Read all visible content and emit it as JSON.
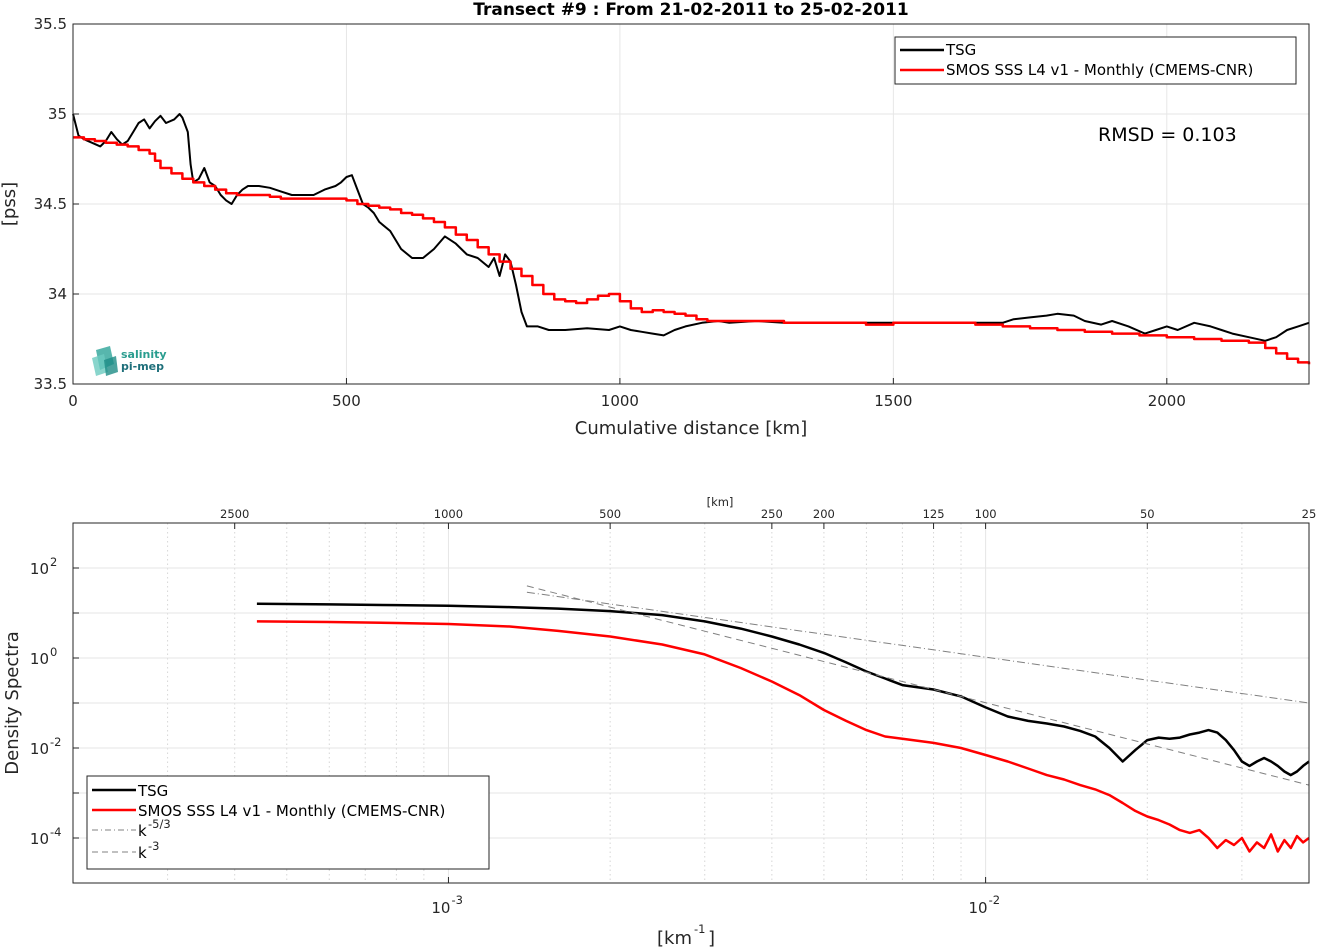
{
  "chart_data": [
    {
      "type": "line",
      "title": "Transect #9 : From 21-02-2011 to 25-02-2011",
      "xlabel": "Cumulative distance [km]",
      "ylabel": "[pss]",
      "xlim": [
        0,
        2260
      ],
      "ylim": [
        33.5,
        35.5
      ],
      "xticks": [
        "0",
        "500",
        "1000",
        "1500",
        "2000"
      ],
      "yticks": [
        "33.5",
        "34",
        "34.5",
        "35",
        "35.5"
      ],
      "grid": true,
      "legend": "top-right",
      "annotation": "RMSD = 0.103",
      "logo": [
        "salinity",
        "pi-mep"
      ],
      "series": [
        {
          "name": "TSG",
          "color": "#000000",
          "x": [
            0,
            10,
            20,
            35,
            50,
            60,
            70,
            80,
            90,
            100,
            110,
            120,
            130,
            140,
            150,
            160,
            170,
            185,
            195,
            200,
            210,
            215,
            220,
            230,
            240,
            250,
            260,
            270,
            280,
            290,
            300,
            310,
            320,
            340,
            360,
            380,
            400,
            420,
            440,
            460,
            480,
            490,
            500,
            510,
            520,
            530,
            540,
            550,
            560,
            580,
            600,
            620,
            640,
            660,
            680,
            700,
            720,
            740,
            760,
            770,
            780,
            790,
            800,
            810,
            820,
            830,
            850,
            870,
            900,
            940,
            980,
            1000,
            1020,
            1040,
            1060,
            1080,
            1100,
            1120,
            1150,
            1180,
            1200,
            1250,
            1300,
            1350,
            1400,
            1450,
            1500,
            1550,
            1600,
            1650,
            1700,
            1720,
            1750,
            1780,
            1800,
            1830,
            1850,
            1880,
            1900,
            1930,
            1960,
            1980,
            2000,
            2020,
            2050,
            2080,
            2100,
            2120,
            2150,
            2180,
            2200,
            2220,
            2240,
            2260
          ],
          "y": [
            35.0,
            34.88,
            34.86,
            34.84,
            34.82,
            34.85,
            34.9,
            34.86,
            34.83,
            34.85,
            34.9,
            34.95,
            34.97,
            34.92,
            34.96,
            34.99,
            34.95,
            34.97,
            35.0,
            34.98,
            34.9,
            34.72,
            34.62,
            34.64,
            34.7,
            34.62,
            34.6,
            34.55,
            34.52,
            34.5,
            34.55,
            34.58,
            34.6,
            34.6,
            34.59,
            34.57,
            34.55,
            34.55,
            34.55,
            34.58,
            34.6,
            34.62,
            34.65,
            34.66,
            34.58,
            34.5,
            34.48,
            34.45,
            34.4,
            34.35,
            34.25,
            34.2,
            34.2,
            34.25,
            34.32,
            34.28,
            34.22,
            34.2,
            34.15,
            34.2,
            34.1,
            34.22,
            34.18,
            34.05,
            33.9,
            33.82,
            33.82,
            33.8,
            33.8,
            33.81,
            33.8,
            33.82,
            33.8,
            33.79,
            33.78,
            33.77,
            33.8,
            33.82,
            33.84,
            33.85,
            33.84,
            33.85,
            33.84,
            33.84,
            33.84,
            33.84,
            33.84,
            33.84,
            33.84,
            33.84,
            33.84,
            33.86,
            33.87,
            33.88,
            33.89,
            33.88,
            33.85,
            33.83,
            33.85,
            33.82,
            33.78,
            33.8,
            33.82,
            33.8,
            33.84,
            33.82,
            33.8,
            33.78,
            33.76,
            33.74,
            33.76,
            33.8,
            33.82,
            33.84
          ]
        },
        {
          "name": "SMOS SSS L4 v1 - Monthly (CMEMS-CNR)",
          "color": "#ff0000",
          "x": [
            0,
            20,
            40,
            60,
            80,
            100,
            120,
            140,
            150,
            160,
            180,
            200,
            220,
            240,
            260,
            280,
            300,
            320,
            340,
            360,
            380,
            400,
            420,
            440,
            460,
            480,
            500,
            520,
            540,
            560,
            580,
            600,
            620,
            640,
            660,
            680,
            700,
            720,
            740,
            760,
            780,
            800,
            820,
            840,
            860,
            880,
            900,
            920,
            940,
            960,
            980,
            1000,
            1020,
            1040,
            1060,
            1080,
            1100,
            1120,
            1140,
            1160,
            1180,
            1200,
            1250,
            1300,
            1350,
            1400,
            1450,
            1500,
            1550,
            1600,
            1650,
            1700,
            1750,
            1800,
            1850,
            1900,
            1950,
            2000,
            2050,
            2100,
            2150,
            2180,
            2200,
            2220,
            2240,
            2260
          ],
          "y": [
            34.87,
            34.86,
            34.85,
            34.84,
            34.83,
            34.82,
            34.8,
            34.78,
            34.74,
            34.7,
            34.67,
            34.64,
            34.62,
            34.6,
            34.58,
            34.56,
            34.55,
            34.55,
            34.55,
            34.54,
            34.53,
            34.53,
            34.53,
            34.53,
            34.53,
            34.53,
            34.52,
            34.5,
            34.49,
            34.48,
            34.47,
            34.45,
            34.44,
            34.42,
            34.4,
            34.37,
            34.33,
            34.3,
            34.26,
            34.22,
            34.18,
            34.14,
            34.1,
            34.05,
            34.0,
            33.97,
            33.96,
            33.95,
            33.97,
            33.99,
            34.0,
            33.96,
            33.92,
            33.9,
            33.91,
            33.9,
            33.89,
            33.88,
            33.86,
            33.85,
            33.85,
            33.85,
            33.85,
            33.84,
            33.84,
            33.84,
            33.83,
            33.84,
            33.84,
            33.84,
            33.83,
            33.82,
            33.81,
            33.8,
            33.79,
            33.78,
            33.77,
            33.76,
            33.75,
            33.74,
            33.73,
            33.7,
            33.67,
            33.64,
            33.62,
            33.61
          ]
        }
      ]
    },
    {
      "type": "line",
      "xlabel": "[km-1]",
      "ylabel": "Density Spectra",
      "xscale": "log",
      "yscale": "log",
      "xlim": [
        0.0002,
        0.04
      ],
      "ylim": [
        1e-05,
        1000
      ],
      "xticks": [
        "10-3",
        "10-2"
      ],
      "yticks": [
        "10-4",
        "10-2",
        "100",
        "102"
      ],
      "top_axis_label": "[km]",
      "top_ticks": [
        "2500",
        "1000",
        "500",
        "250",
        "200",
        "125",
        "100",
        "50",
        "25"
      ],
      "grid": true,
      "legend": "bottom-left",
      "series": [
        {
          "name": "TSG",
          "color": "#000000",
          "x": [
            0.00044,
            0.0006,
            0.0008,
            0.001,
            0.0013,
            0.0016,
            0.002,
            0.0025,
            0.003,
            0.0035,
            0.004,
            0.0045,
            0.005,
            0.0055,
            0.006,
            0.0065,
            0.007,
            0.008,
            0.009,
            0.01,
            0.011,
            0.012,
            0.013,
            0.014,
            0.015,
            0.016,
            0.017,
            0.018,
            0.019,
            0.02,
            0.021,
            0.022,
            0.023,
            0.024,
            0.025,
            0.026,
            0.027,
            0.028,
            0.029,
            0.03,
            0.031,
            0.032,
            0.033,
            0.034,
            0.035,
            0.036,
            0.037,
            0.038,
            0.039,
            0.04
          ],
          "y": [
            16,
            15.5,
            15,
            14.5,
            13.5,
            12.5,
            11,
            9,
            6.5,
            4.5,
            3,
            2,
            1.3,
            0.8,
            0.5,
            0.35,
            0.25,
            0.2,
            0.14,
            0.08,
            0.05,
            0.04,
            0.035,
            0.03,
            0.024,
            0.018,
            0.01,
            0.005,
            0.009,
            0.015,
            0.017,
            0.016,
            0.017,
            0.02,
            0.022,
            0.025,
            0.022,
            0.015,
            0.009,
            0.005,
            0.004,
            0.005,
            0.006,
            0.005,
            0.004,
            0.003,
            0.0025,
            0.003,
            0.004,
            0.005
          ]
        },
        {
          "name": "SMOS SSS L4 v1 - Monthly (CMEMS-CNR)",
          "color": "#ff0000",
          "x": [
            0.00044,
            0.0006,
            0.0008,
            0.001,
            0.0013,
            0.0016,
            0.002,
            0.0025,
            0.003,
            0.0035,
            0.004,
            0.0045,
            0.005,
            0.0055,
            0.006,
            0.0065,
            0.007,
            0.008,
            0.009,
            0.01,
            0.011,
            0.012,
            0.013,
            0.014,
            0.015,
            0.016,
            0.017,
            0.018,
            0.019,
            0.02,
            0.021,
            0.022,
            0.023,
            0.024,
            0.025,
            0.026,
            0.027,
            0.028,
            0.029,
            0.03,
            0.031,
            0.032,
            0.033,
            0.034,
            0.035,
            0.036,
            0.037,
            0.038,
            0.039,
            0.04
          ],
          "y": [
            6.5,
            6.3,
            6,
            5.7,
            5,
            4,
            3,
            2,
            1.2,
            0.6,
            0.3,
            0.15,
            0.07,
            0.04,
            0.025,
            0.018,
            0.016,
            0.013,
            0.01,
            0.007,
            0.005,
            0.0035,
            0.0025,
            0.002,
            0.0015,
            0.0012,
            0.0009,
            0.0006,
            0.0004,
            0.0003,
            0.00025,
            0.0002,
            0.00015,
            0.00013,
            0.00015,
            0.0001,
            6e-05,
            9e-05,
            7e-05,
            0.0001,
            5e-05,
            8e-05,
            6e-05,
            0.00012,
            5e-05,
            9e-05,
            6e-05,
            0.00011,
            8e-05,
            0.0001
          ]
        },
        {
          "name": "k-5/3",
          "color": "#808080",
          "x": [
            0.0014,
            0.04
          ],
          "y": [
            29,
            0.1
          ]
        },
        {
          "name": "k-3",
          "color": "#808080",
          "x": [
            0.0014,
            0.04
          ],
          "y": [
            40,
            0.0015
          ]
        }
      ],
      "legend_entries": [
        {
          "label": "TSG",
          "sup": ""
        },
        {
          "label": "SMOS SSS L4 v1 - Monthly (CMEMS-CNR)",
          "sup": ""
        },
        {
          "label": "k",
          "sup": "-5/3"
        },
        {
          "label": "k",
          "sup": "-3"
        }
      ]
    }
  ]
}
